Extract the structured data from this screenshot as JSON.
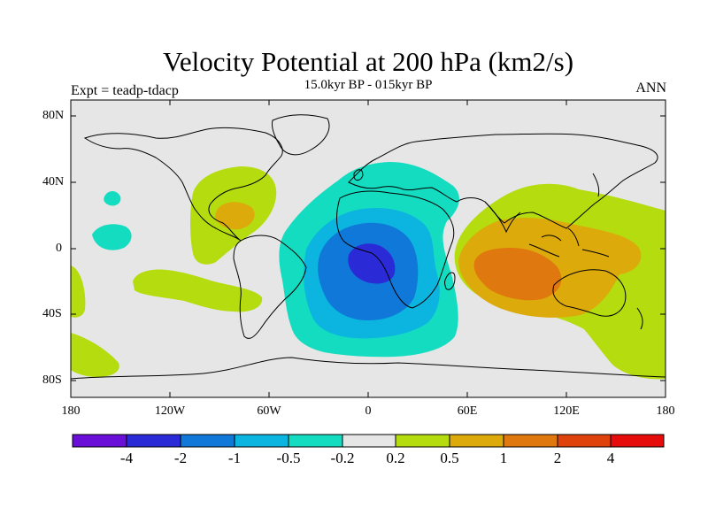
{
  "plot": {
    "title": "Velocity Potential at 200 hPa (km2/s)",
    "subtitle": "15.0kyr BP - 015kyr BP",
    "left_label": "Expt = teadp-tdacp",
    "right_label": "ANN"
  },
  "axes": {
    "lat_labels": [
      "80N",
      "40N",
      "0",
      "40S",
      "80S"
    ],
    "lon_labels": [
      "180",
      "120W",
      "60W",
      "0",
      "60E",
      "120E",
      "180"
    ]
  },
  "colorbar": {
    "labels": [
      "-4",
      "-2",
      "-1",
      "-0.5",
      "-0.2",
      "0.2",
      "0.5",
      "1",
      "2",
      "4"
    ],
    "colors": [
      "#6a0fd8",
      "#2a2ad6",
      "#0f78d8",
      "#0cb4e0",
      "#14dcc0",
      "#e6e6e6",
      "#b4dc0f",
      "#dcaa0a",
      "#e07810",
      "#e0420c",
      "#e60c0c"
    ]
  }
}
